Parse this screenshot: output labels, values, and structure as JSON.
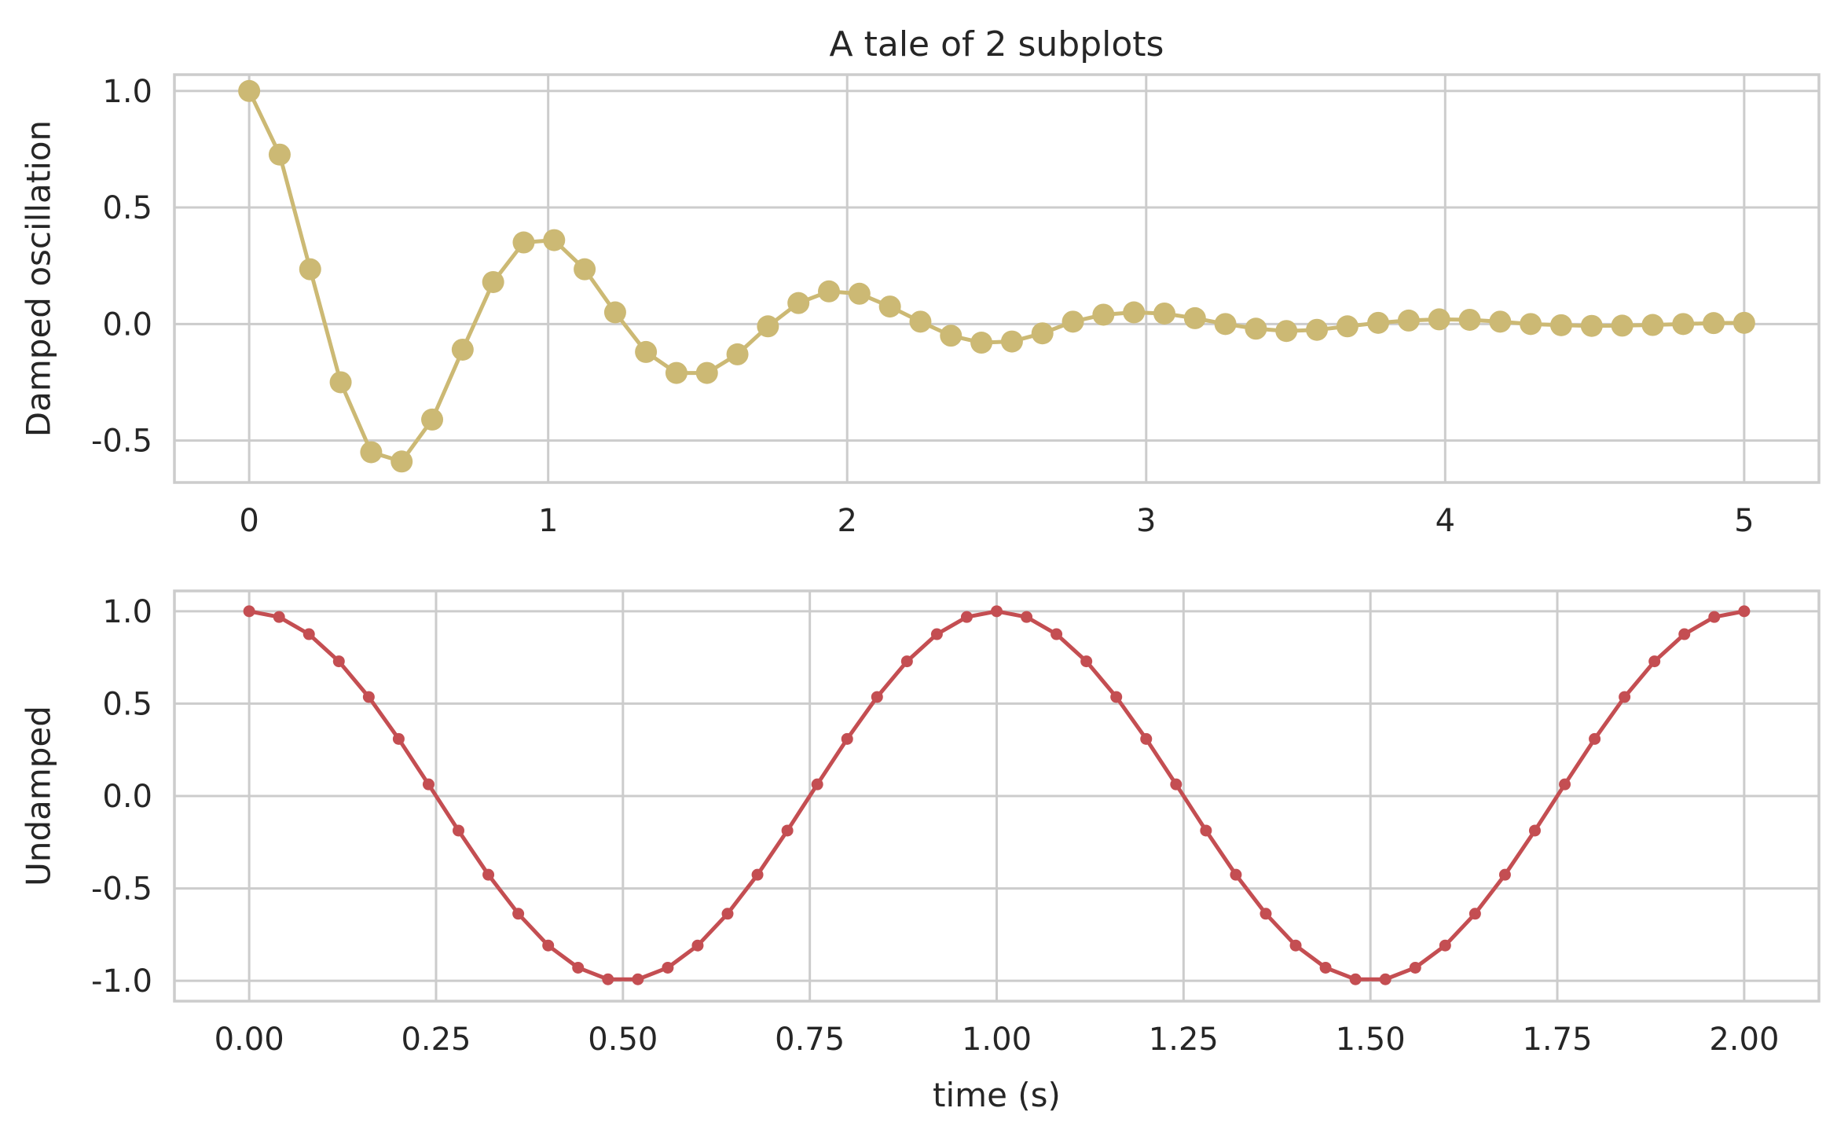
{
  "chart_data": [
    {
      "type": "line",
      "title": "A tale of 2 subplots",
      "xlabel": "",
      "ylabel": "Damped oscillation",
      "xlim": [
        -0.25,
        5.25
      ],
      "ylim": [
        -0.68,
        1.07
      ],
      "x_ticks": [
        0,
        1,
        2,
        3,
        4,
        5
      ],
      "x_tick_labels": [
        "0",
        "1",
        "2",
        "3",
        "4",
        "5"
      ],
      "y_ticks": [
        1.0,
        0.5,
        0.0,
        -0.5
      ],
      "y_tick_labels": [
        "1.0",
        "0.5",
        "0.0",
        "-0.5"
      ],
      "grid": true,
      "marker": "circle-large",
      "color": "#ccb974",
      "series": [
        {
          "x": [
            0.0,
            0.102,
            0.204,
            0.306,
            0.408,
            0.51,
            0.612,
            0.714,
            0.816,
            0.918,
            1.02,
            1.122,
            1.224,
            1.327,
            1.429,
            1.531,
            1.633,
            1.735,
            1.837,
            1.939,
            2.041,
            2.143,
            2.245,
            2.347,
            2.449,
            2.551,
            2.653,
            2.755,
            2.857,
            2.959,
            3.061,
            3.163,
            3.265,
            3.367,
            3.469,
            3.571,
            3.673,
            3.776,
            3.878,
            3.98,
            4.082,
            4.184,
            4.286,
            4.388,
            4.49,
            4.592,
            4.694,
            4.796,
            4.898,
            5.0
          ],
          "y": [
            1.0,
            0.727,
            0.235,
            -0.25,
            -0.55,
            -0.59,
            -0.41,
            -0.11,
            0.18,
            0.35,
            0.36,
            0.235,
            0.05,
            -0.12,
            -0.21,
            -0.21,
            -0.13,
            -0.01,
            0.09,
            0.14,
            0.13,
            0.075,
            0.01,
            -0.05,
            -0.08,
            -0.075,
            -0.04,
            0.01,
            0.04,
            0.05,
            0.045,
            0.025,
            0.0,
            -0.02,
            -0.03,
            -0.025,
            -0.01,
            0.005,
            0.015,
            0.02,
            0.018,
            0.01,
            0.0,
            -0.005,
            -0.008,
            -0.007,
            -0.004,
            0.0,
            0.004,
            0.005
          ]
        }
      ]
    },
    {
      "type": "line",
      "title": "",
      "xlabel": "time (s)",
      "ylabel": "Undamped",
      "xlim": [
        -0.1,
        2.1
      ],
      "ylim": [
        -1.11,
        1.11
      ],
      "x_ticks": [
        0.0,
        0.25,
        0.5,
        0.75,
        1.0,
        1.25,
        1.5,
        1.75,
        2.0
      ],
      "x_tick_labels": [
        "0.00",
        "0.25",
        "0.50",
        "0.75",
        "1.00",
        "1.25",
        "1.50",
        "1.75",
        "2.00"
      ],
      "y_ticks": [
        1.0,
        0.5,
        0.0,
        -0.5,
        -1.0
      ],
      "y_tick_labels": [
        "1.0",
        "0.5",
        "0.0",
        "-0.5",
        "-1.0"
      ],
      "grid": true,
      "marker": "dot-small",
      "color": "#c44e52",
      "series": [
        {
          "x": [
            0.0,
            0.04,
            0.08,
            0.12,
            0.16,
            0.2,
            0.24,
            0.28,
            0.32,
            0.36,
            0.4,
            0.44,
            0.48,
            0.52,
            0.56,
            0.6,
            0.64,
            0.68,
            0.72,
            0.76,
            0.8,
            0.84,
            0.88,
            0.92,
            0.96,
            1.0,
            1.04,
            1.08,
            1.12,
            1.16,
            1.2,
            1.24,
            1.28,
            1.32,
            1.36,
            1.4,
            1.44,
            1.48,
            1.52,
            1.56,
            1.6,
            1.64,
            1.68,
            1.72,
            1.76,
            1.8,
            1.84,
            1.88,
            1.92,
            1.96,
            2.0
          ],
          "y": [
            1.0,
            0.969,
            0.876,
            0.729,
            0.536,
            0.309,
            0.063,
            -0.187,
            -0.426,
            -0.637,
            -0.809,
            -0.929,
            -0.992,
            -0.992,
            -0.929,
            -0.809,
            -0.637,
            -0.426,
            -0.187,
            0.063,
            0.309,
            0.536,
            0.729,
            0.876,
            0.969,
            1.0,
            0.969,
            0.876,
            0.729,
            0.536,
            0.309,
            0.063,
            -0.187,
            -0.426,
            -0.637,
            -0.809,
            -0.929,
            -0.992,
            -0.992,
            -0.929,
            -0.809,
            -0.637,
            -0.426,
            -0.187,
            0.063,
            0.309,
            0.536,
            0.729,
            0.876,
            0.969,
            1.0
          ]
        }
      ]
    }
  ]
}
